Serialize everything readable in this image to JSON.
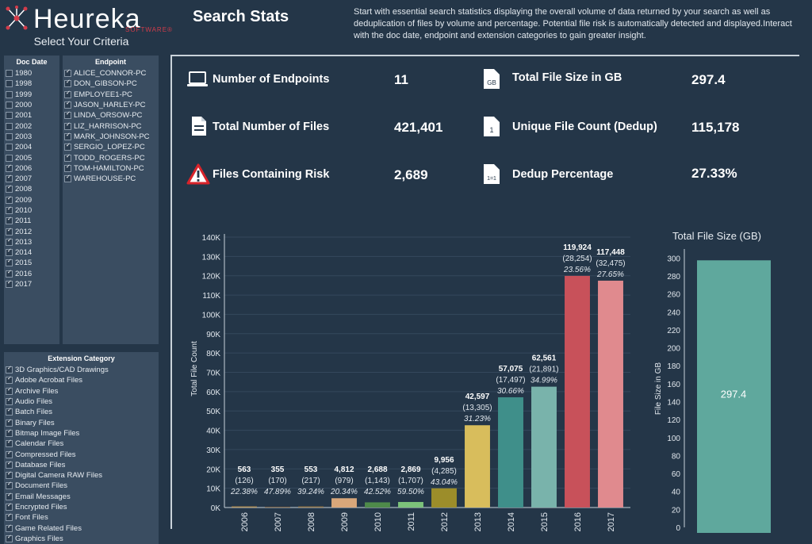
{
  "header": {
    "logo_text": "Heureka",
    "logo_sub": "SOFTWARE®",
    "select_label": "Select Your Criteria",
    "title": "Search Stats",
    "description": "Start with essential search statistics displaying the overall volume of data returned by your search as well as deduplication of files by volume and percentage. Potential file risk is automatically detected and displayed.Interact with the doc date, endpoint and extension categories to gain greater insight."
  },
  "filters": {
    "doc_date": {
      "title": "Doc Date",
      "items": [
        {
          "label": "1980",
          "checked": false
        },
        {
          "label": "1998",
          "checked": false
        },
        {
          "label": "1999",
          "checked": false
        },
        {
          "label": "2000",
          "checked": false
        },
        {
          "label": "2001",
          "checked": false
        },
        {
          "label": "2002",
          "checked": false
        },
        {
          "label": "2003",
          "checked": false
        },
        {
          "label": "2004",
          "checked": false
        },
        {
          "label": "2005",
          "checked": false
        },
        {
          "label": "2006",
          "checked": true
        },
        {
          "label": "2007",
          "checked": true
        },
        {
          "label": "2008",
          "checked": true
        },
        {
          "label": "2009",
          "checked": true
        },
        {
          "label": "2010",
          "checked": true
        },
        {
          "label": "2011",
          "checked": true
        },
        {
          "label": "2012",
          "checked": true
        },
        {
          "label": "2013",
          "checked": true
        },
        {
          "label": "2014",
          "checked": true
        },
        {
          "label": "2015",
          "checked": true
        },
        {
          "label": "2016",
          "checked": true
        },
        {
          "label": "2017",
          "checked": true
        }
      ]
    },
    "endpoint": {
      "title": "Endpoint",
      "items": [
        {
          "label": "ALICE_CONNOR-PC",
          "checked": true
        },
        {
          "label": "DON_GIBSON-PC",
          "checked": true
        },
        {
          "label": "EMPLOYEE1-PC",
          "checked": true
        },
        {
          "label": "JASON_HARLEY-PC",
          "checked": true
        },
        {
          "label": "LINDA_ORSOW-PC",
          "checked": true
        },
        {
          "label": "LIZ_HARRISON-PC",
          "checked": true
        },
        {
          "label": "MARK_JOHNSON-PC",
          "checked": true
        },
        {
          "label": "SERGIO_LOPEZ-PC",
          "checked": true
        },
        {
          "label": "TODD_ROGERS-PC",
          "checked": true
        },
        {
          "label": "TOM-HAMILTON-PC",
          "checked": true
        },
        {
          "label": "WAREHOUSE-PC",
          "checked": true
        }
      ]
    },
    "extension": {
      "title": "Extension Category",
      "items": [
        {
          "label": "3D Graphics/CAD Drawings",
          "checked": true
        },
        {
          "label": "Adobe Acrobat Files",
          "checked": true
        },
        {
          "label": "Archive Files",
          "checked": true
        },
        {
          "label": "Audio Files",
          "checked": true
        },
        {
          "label": "Batch Files",
          "checked": true
        },
        {
          "label": "Binary Files",
          "checked": true
        },
        {
          "label": "Bitmap Image Files",
          "checked": true
        },
        {
          "label": "Calendar Files",
          "checked": true
        },
        {
          "label": "Compressed Files",
          "checked": true
        },
        {
          "label": "Database Files",
          "checked": true
        },
        {
          "label": "Digital Camera RAW Files",
          "checked": true
        },
        {
          "label": "Document Files",
          "checked": true
        },
        {
          "label": "Email Messages",
          "checked": true
        },
        {
          "label": "Encrypted Files",
          "checked": true
        },
        {
          "label": "Font Files",
          "checked": true
        },
        {
          "label": "Game Related Files",
          "checked": true
        },
        {
          "label": "Graphics Files",
          "checked": true
        }
      ]
    }
  },
  "stats": {
    "endpoints": {
      "label": "Number of Endpoints",
      "value": "11",
      "icon": "laptop-icon"
    },
    "total_files": {
      "label": "Total Number of Files",
      "value": "421,401",
      "icon": "document-icon"
    },
    "risk": {
      "label": "Files Containing Risk",
      "value": "2,689",
      "icon": "warning-icon"
    },
    "file_size": {
      "label": "Total File Size in GB",
      "value": "297.4",
      "icon": "gb-file-icon",
      "icon_text": "GB"
    },
    "unique": {
      "label": "Unique File Count (Dedup)",
      "value": "115,178",
      "icon": "one-file-icon",
      "icon_text": "1"
    },
    "dedup": {
      "label": "Dedup Percentage",
      "value": "27.33%",
      "icon": "dedup-file-icon",
      "icon_text": "1=1"
    }
  },
  "colors": {
    "risk": "#d8232a",
    "accent_teal": "#5fa89d"
  },
  "chart_data": [
    {
      "type": "bar",
      "title": "",
      "xlabel": "",
      "ylabel": "Total File Count",
      "ylim": [
        0,
        140000
      ],
      "yticks": [
        "0K",
        "10K",
        "20K",
        "30K",
        "40K",
        "50K",
        "60K",
        "70K",
        "80K",
        "90K",
        "100K",
        "110K",
        "120K",
        "130K",
        "140K"
      ],
      "categories": [
        "2006",
        "2007",
        "2008",
        "2009",
        "2010",
        "2011",
        "2012",
        "2013",
        "2014",
        "2015",
        "2016",
        "2017"
      ],
      "values": [
        563,
        355,
        553,
        4812,
        2688,
        2869,
        9956,
        42597,
        57075,
        62561,
        119924,
        117448
      ],
      "value_labels": [
        "563",
        "355",
        "553",
        "4,812",
        "2,688",
        "2,869",
        "9,956",
        "42,597",
        "57,075",
        "62,561",
        "119,924",
        "117,448"
      ],
      "unique_labels": [
        "(126)",
        "(170)",
        "(217)",
        "(979)",
        "(1,143)",
        "(1,707)",
        "(4,285)",
        "(13,305)",
        "(17,497)",
        "(21,891)",
        "(28,254)",
        "(32,475)"
      ],
      "pct_labels": [
        "22.38%",
        "47.89%",
        "39.24%",
        "20.34%",
        "42.52%",
        "59.50%",
        "43.04%",
        "31.23%",
        "30.66%",
        "34.99%",
        "23.56%",
        "27.65%"
      ],
      "colors": [
        "#b8955a",
        "#8a6a44",
        "#9a7a4a",
        "#d9a77a",
        "#4e8a4a",
        "#7cc27a",
        "#9c8d2a",
        "#d8bd5c",
        "#3f8f8a",
        "#79b3ab",
        "#c8515a",
        "#e08a8e"
      ]
    },
    {
      "type": "bar",
      "title": "Total File Size (GB)",
      "ylabel": "File Size in GB",
      "ylim": [
        0,
        310
      ],
      "yticks": [
        "0",
        "20",
        "40",
        "60",
        "80",
        "100",
        "120",
        "140",
        "160",
        "180",
        "200",
        "220",
        "240",
        "260",
        "280",
        "300"
      ],
      "categories": [
        ""
      ],
      "values": [
        297.4
      ],
      "value_labels": [
        "297.4"
      ],
      "colors": [
        "#5fa89d"
      ]
    }
  ]
}
